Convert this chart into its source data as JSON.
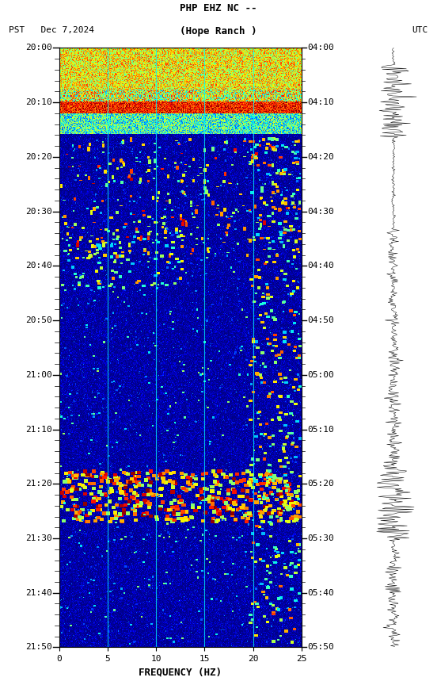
{
  "title_line1": "PHP EHZ NC --",
  "title_line2": "(Hope Ranch )",
  "left_label": "PST   Dec 7,2024",
  "right_label": "UTC",
  "freq_min": 0,
  "freq_max": 25,
  "freq_label": "FREQUENCY (HZ)",
  "ytick_pst": [
    "20:00",
    "20:10",
    "20:20",
    "20:30",
    "20:40",
    "20:50",
    "21:00",
    "21:10",
    "21:20",
    "21:30",
    "21:40",
    "21:50"
  ],
  "ytick_utc": [
    "04:00",
    "04:10",
    "04:20",
    "04:30",
    "04:40",
    "04:50",
    "05:00",
    "05:10",
    "05:20",
    "05:30",
    "05:40",
    "05:50"
  ],
  "xticks": [
    0,
    5,
    10,
    15,
    20,
    25
  ],
  "vertical_lines_freq": [
    5,
    10,
    15,
    20
  ],
  "bg_color": "#ffffff",
  "spectrogram_cmap": "jet"
}
